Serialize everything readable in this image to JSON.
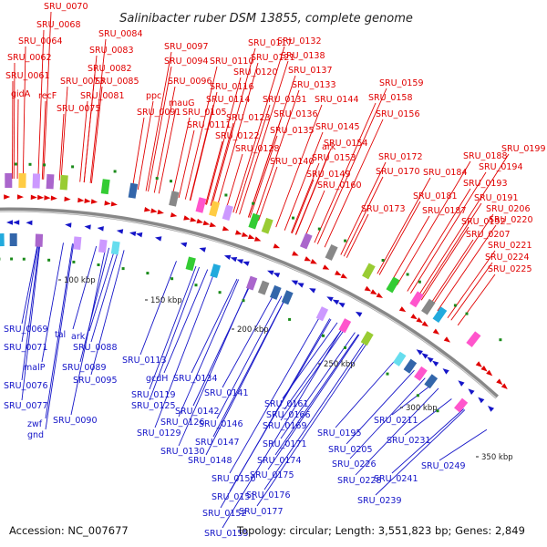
{
  "title": "Salinibacter ruber DSM 13855, complete genome",
  "footer": {
    "accession": "Accession: NC_007677",
    "summary": "Topology: circular; Length: 3,551,823 bp; Genes: 2,849"
  },
  "colors": {
    "forward": "#e00000",
    "reverse": "#1515c8",
    "backbone": "#888888",
    "misc_feature": "#1a8a1a"
  },
  "ticks": [
    "100 kbp",
    "150 kbp",
    "200 kbp",
    "250 kbp",
    "300 kbp",
    "350 kbp"
  ],
  "forward_labels": [
    "SRU_0070",
    "SRU_0068",
    "SRU_0064",
    "SRU_0062",
    "SRU_0061",
    "gidA",
    "recF",
    "SRU_0073",
    "SRU_0075",
    "SRU_0084",
    "SRU_0083",
    "SRU_0082",
    "SRU_0081",
    "SRU_0085",
    "ppc",
    "SRU_0091",
    "SRU_0097",
    "SRU_0094",
    "SRU_0096",
    "mauG",
    "SRU_0105",
    "SRU_0111",
    "SRU_0110",
    "SRU_0116",
    "SRU_0114",
    "SRU_0117",
    "SRU_0121",
    "SRU_0120",
    "SRU_0123",
    "SRU_0122",
    "SRU_0128",
    "SRU_0132",
    "SRU_0138",
    "SRU_0137",
    "SRU_0133",
    "SRU_0131",
    "SRU_0136",
    "SRU_0135",
    "SRU_0140",
    "ark",
    "SRU_0144",
    "SRU_0145",
    "SRU_0154",
    "SRU_0153",
    "SRU_0149",
    "SRU_0160",
    "SRU_0159",
    "SRU_0158",
    "SRU_0156",
    "SRU_0172",
    "SRU_0170",
    "SRU_0173",
    "SRU_0184",
    "SRU_0181",
    "SRU_0187",
    "SRU_0188",
    "SRU_0199",
    "SRU_0194",
    "SRU_0193",
    "SRU_0191",
    "SRU_0192",
    "SRU_0206",
    "SRU_0207",
    "SRU_0220",
    "SRU_0221",
    "SRU_0224",
    "SRU_0225"
  ],
  "reverse_labels": [
    "SRU_0069",
    "SRU_0071",
    "malP",
    "SRU_0076",
    "SRU_0077",
    "zwf",
    "gnd",
    "tal",
    "ark",
    "SRU_0088",
    "SRU_0089",
    "SRU_0095",
    "SRU_0090",
    "SRU_0113",
    "gcdH",
    "SRU_0119",
    "SRU_0125",
    "SRU_0126",
    "SRU_0129",
    "SRU_0130",
    "SRU_0134",
    "SRU_0141",
    "SRU_0142",
    "SRU_0146",
    "SRU_0147",
    "SRU_0148",
    "SRU_0150",
    "SRU_0151",
    "SRU_0152",
    "SRU_0155",
    "SRU_0161",
    "SRU_0166",
    "SRU_0169",
    "SRU_0171",
    "SRU_0174",
    "SRU_0175",
    "SRU_0176",
    "SRU_0177",
    "SRU_0195",
    "SRU_0205",
    "SRU_0211",
    "SRU_0226",
    "SRU_0228",
    "SRU_0231",
    "SRU_0239",
    "SRU_0241",
    "SRU_0249"
  ]
}
